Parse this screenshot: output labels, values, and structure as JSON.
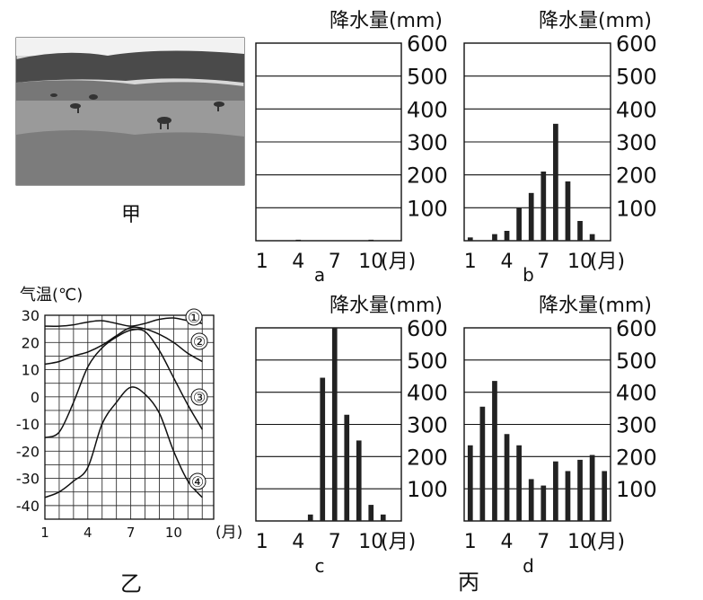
{
  "photo": {
    "label": "甲",
    "scene_icon": "grassland-with-grazing-animals"
  },
  "temperature_panel": {
    "label": "乙"
  },
  "precip_panel_group": {
    "label": "丙"
  },
  "chart_data": [
    {
      "id": "precip-a",
      "type": "bar",
      "panel_label": "a",
      "ylabel": "降水量(mm)",
      "xlabel": "(月)",
      "ylim": [
        0,
        600
      ],
      "yticks": [
        "100",
        "200",
        "300",
        "400",
        "500",
        "600"
      ],
      "x_tick_labels": [
        "1",
        "4",
        "7",
        "10"
      ],
      "grid": true,
      "values": [
        0,
        0,
        0,
        3,
        0,
        0,
        0,
        0,
        0,
        3,
        0,
        0
      ]
    },
    {
      "id": "precip-b",
      "type": "bar",
      "panel_label": "b",
      "ylabel": "降水量(mm)",
      "xlabel": "(月)",
      "ylim": [
        0,
        600
      ],
      "yticks": [
        "100",
        "200",
        "300",
        "400",
        "500",
        "600"
      ],
      "x_tick_labels": [
        "1",
        "4",
        "7",
        "10"
      ],
      "grid": true,
      "values": [
        10,
        0,
        20,
        30,
        100,
        145,
        210,
        355,
        180,
        60,
        20,
        0
      ]
    },
    {
      "id": "precip-c",
      "type": "bar",
      "panel_label": "c",
      "ylabel": "降水量(mm)",
      "xlabel": "(月)",
      "ylim": [
        0,
        600
      ],
      "yticks": [
        "100",
        "200",
        "300",
        "400",
        "500",
        "600"
      ],
      "x_tick_labels": [
        "1",
        "4",
        "7",
        "10"
      ],
      "grid": true,
      "values": [
        0,
        0,
        0,
        0,
        20,
        445,
        600,
        330,
        250,
        50,
        20,
        0
      ]
    },
    {
      "id": "precip-d",
      "type": "bar",
      "panel_label": "d",
      "ylabel": "降水量(mm)",
      "xlabel": "(月)",
      "ylim": [
        0,
        600
      ],
      "yticks": [
        "100",
        "200",
        "300",
        "400",
        "500",
        "600"
      ],
      "x_tick_labels": [
        "1",
        "4",
        "7",
        "10"
      ],
      "grid": true,
      "values": [
        235,
        355,
        435,
        270,
        235,
        130,
        110,
        185,
        155,
        190,
        205,
        155
      ]
    },
    {
      "id": "temperature",
      "type": "line",
      "ylabel": "气温(℃)",
      "xlabel": "(月)",
      "ylim": [
        -45,
        30
      ],
      "yticks": [
        30,
        20,
        10,
        0,
        -10,
        -20,
        -30,
        -40
      ],
      "x_tick_labels": [
        "1",
        "4",
        "7",
        "10"
      ],
      "grid": true,
      "x": [
        1,
        2,
        3,
        4,
        5,
        6,
        7,
        8,
        9,
        10,
        11,
        12
      ],
      "series": [
        {
          "marker": "①",
          "values": [
            26,
            26,
            26.5,
            27.5,
            28,
            27,
            26,
            27,
            28.5,
            29,
            28,
            27
          ]
        },
        {
          "marker": "②",
          "values": [
            12,
            13,
            15,
            16.5,
            19,
            22.5,
            25.5,
            25,
            23,
            20,
            16,
            13
          ]
        },
        {
          "marker": "③",
          "values": [
            -15,
            -13,
            -2,
            11,
            18,
            22,
            24.5,
            24,
            17,
            7,
            -3,
            -12
          ]
        },
        {
          "marker": "④",
          "values": [
            -37,
            -35,
            -31,
            -26,
            -10,
            -2,
            3.5,
            1,
            -6,
            -20,
            -31,
            -37
          ]
        }
      ]
    }
  ]
}
